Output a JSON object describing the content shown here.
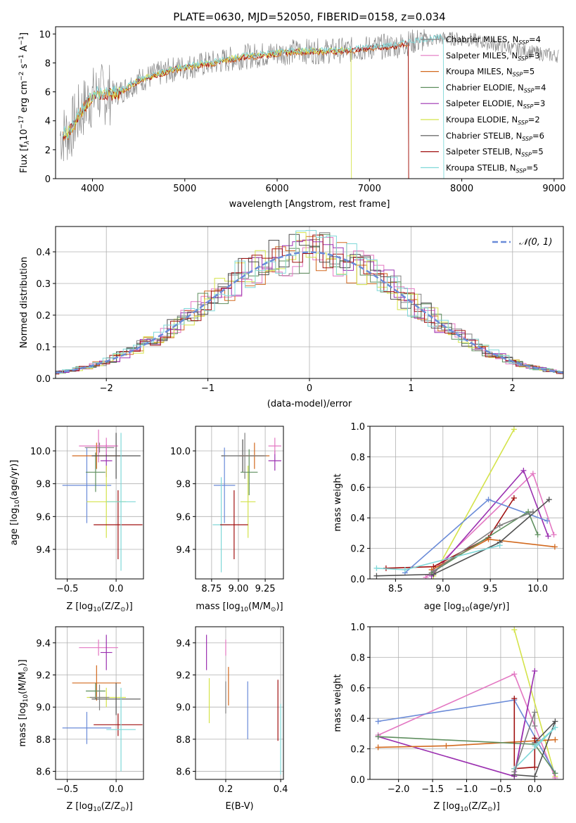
{
  "colors": {
    "Chabrier MILES": "#808080",
    "Salpeter MILES": "#e377c2",
    "Kroupa MILES": "#d2691e",
    "Chabrier ELODIE": "#5f8f5f",
    "Salpeter ELODIE": "#9b30b0",
    "Kroupa ELODIE": "#d4e34a",
    "Chabrier STELIB": "#505050",
    "Salpeter STELIB": "#a01010",
    "Kroupa STELIB": "#7fd8d8",
    "blue": "#6a8bd8",
    "grid": "#b0b0b0"
  },
  "chart_data": [
    {
      "id": "spectrum",
      "type": "line",
      "title": "PLATE=0630, MJD=52050, FIBERID=0158, z=0.034",
      "xlabel": "wavelength [Angstrom, rest frame]",
      "ylabel_parts": [
        "Flux [f",
        "λ",
        "10",
        "−17",
        " erg cm",
        "−2",
        " s",
        "−1",
        " A",
        "−1",
        "]"
      ],
      "xlim": [
        3600,
        9100
      ],
      "ylim": [
        0,
        10.5
      ],
      "xticks": [
        "4000",
        "5000",
        "6000",
        "7000",
        "8000",
        "9000"
      ],
      "yticks": [
        "0",
        "2",
        "4",
        "6",
        "8",
        "10"
      ],
      "grid": false,
      "legend_position": "right",
      "legend": [
        {
          "main": "Chabrier MILES, N",
          "sub": "SSP",
          "tail": "=4",
          "color": "Chabrier MILES"
        },
        {
          "main": "Salpeter MILES, N",
          "sub": "SSP",
          "tail": "=3",
          "color": "Salpeter MILES"
        },
        {
          "main": "Kroupa MILES, N",
          "sub": "SSP",
          "tail": "=5",
          "color": "Kroupa MILES"
        },
        {
          "main": "Chabrier ELODIE, N",
          "sub": "SSP",
          "tail": "=4",
          "color": "Chabrier ELODIE"
        },
        {
          "main": "Salpeter ELODIE, N",
          "sub": "SSP",
          "tail": "=3",
          "color": "Salpeter ELODIE"
        },
        {
          "main": "Kroupa ELODIE, N",
          "sub": "SSP",
          "tail": "=2",
          "color": "Kroupa ELODIE"
        },
        {
          "main": "Chabrier STELIB, N",
          "sub": "SSP",
          "tail": "=6",
          "color": "Chabrier STELIB"
        },
        {
          "main": "Salpeter STELIB, N",
          "sub": "SSP",
          "tail": "=5",
          "color": "Salpeter STELIB"
        },
        {
          "main": "Kroupa STELIB, N",
          "sub": "SSP",
          "tail": "=5",
          "color": "Kroupa STELIB"
        }
      ],
      "continuum": {
        "x": [
          3650,
          3750,
          3850,
          3950,
          4050,
          4150,
          4300,
          4500,
          4700,
          4900,
          5100,
          5300,
          5600,
          5900,
          6200,
          6500,
          6800,
          7100,
          7300,
          7500,
          7800,
          8100,
          8400,
          8700,
          9000
        ],
        "y": [
          3.0,
          3.2,
          4.4,
          5.3,
          5.9,
          5.8,
          6.0,
          6.8,
          7.2,
          7.6,
          7.8,
          8.0,
          8.4,
          8.6,
          8.8,
          8.8,
          8.9,
          9.1,
          9.2,
          9.5,
          9.7,
          9.6,
          9.2,
          8.8,
          8.5
        ]
      }
    },
    {
      "id": "residuals",
      "type": "step",
      "xlabel": "(data-model)/error",
      "ylabel": "Normed distribution",
      "xlim": [
        -2.5,
        2.5
      ],
      "ylim": [
        0,
        0.48
      ],
      "xticks": [
        "−2",
        "−1",
        "0",
        "1",
        "2"
      ],
      "yticks": [
        "0.0",
        "0.1",
        "0.2",
        "0.3",
        "0.4"
      ],
      "grid": true,
      "legend_label": "𝒩(0, 1)",
      "legend_position": "top-right",
      "gaussian": {
        "mu": 0,
        "sigma": 1
      }
    },
    {
      "id": "z-age",
      "type": "errorbar",
      "xlabel": "Z [log10(Z/Z⊙)]",
      "ylabel": "age  [log10(age/yr)]",
      "xlim": [
        -0.62,
        0.28
      ],
      "ylim": [
        9.22,
        10.15
      ],
      "xticks": [
        "−0.5",
        "0.0"
      ],
      "yticks": [
        "9.4",
        "9.6",
        "9.8",
        "10.0"
      ],
      "points": [
        {
          "x": -0.3,
          "y": 9.79,
          "xerr": 0.25,
          "yerr": 0.23,
          "color": "blue"
        },
        {
          "x": -0.18,
          "y": 10.03,
          "xerr": 0.2,
          "yerr": 0.1,
          "color": "Salpeter MILES"
        },
        {
          "x": -0.17,
          "y": 10.02,
          "xerr": 0.15,
          "yerr": 0.03,
          "color": "Chabrier MILES"
        },
        {
          "x": -0.2,
          "y": 9.97,
          "xerr": 0.25,
          "yerr": 0.08,
          "color": "Kroupa MILES"
        },
        {
          "x": -0.21,
          "y": 9.87,
          "xerr": 0.1,
          "yerr": 0.12,
          "color": "Chabrier ELODIE"
        },
        {
          "x": -0.1,
          "y": 9.94,
          "xerr": 0.06,
          "yerr": 0.1,
          "color": "Salpeter ELODIE"
        },
        {
          "x": -0.1,
          "y": 9.69,
          "xerr": 0.2,
          "yerr": 0.22,
          "color": "Kroupa ELODIE"
        },
        {
          "x": 0.0,
          "y": 9.97,
          "xerr": 0.25,
          "yerr": 0.14,
          "color": "Chabrier STELIB"
        },
        {
          "x": 0.02,
          "y": 9.55,
          "xerr": 0.25,
          "yerr": 0.21,
          "color": "Salpeter STELIB"
        },
        {
          "x": 0.05,
          "y": 9.69,
          "xerr": 0.15,
          "yerr": 0.42,
          "color": "Kroupa STELIB"
        },
        {
          "x": -0.1,
          "y": 10.03,
          "xerr": 0.1,
          "yerr": 0.05,
          "color": "Salpeter MILES"
        }
      ]
    },
    {
      "id": "mass-age",
      "type": "errorbar",
      "xlabel": "mass [log10(M/M⊙)]",
      "ylabel": "",
      "xlim": [
        8.6,
        9.42
      ],
      "ylim": [
        9.22,
        10.15
      ],
      "xticks": [
        "8.75",
        "9.00",
        "9.25"
      ],
      "yticks": [
        "9.4",
        "9.6",
        "9.8",
        "10.0"
      ],
      "points": [
        {
          "x": 8.87,
          "y": 9.79,
          "xerr": 0.1,
          "yerr": 0.23,
          "color": "blue"
        },
        {
          "x": 8.84,
          "y": 9.55,
          "xerr": 0.08,
          "yerr": 0.29,
          "color": "Kroupa STELIB"
        },
        {
          "x": 9.04,
          "y": 9.97,
          "xerr": 0.2,
          "yerr": 0.1,
          "color": "Chabrier STELIB"
        },
        {
          "x": 9.09,
          "y": 9.69,
          "xerr": 0.07,
          "yerr": 0.22,
          "color": "Kroupa ELODIE"
        },
        {
          "x": 9.1,
          "y": 9.87,
          "xerr": 0.08,
          "yerr": 0.14,
          "color": "Chabrier ELODIE"
        },
        {
          "x": 9.15,
          "y": 9.97,
          "xerr": 0.14,
          "yerr": 0.08,
          "color": "Kroupa MILES"
        },
        {
          "x": 9.34,
          "y": 9.94,
          "xerr": 0.06,
          "yerr": 0.06,
          "color": "Salpeter ELODIE"
        },
        {
          "x": 9.34,
          "y": 10.03,
          "xerr": 0.06,
          "yerr": 0.05,
          "color": "Salpeter MILES"
        },
        {
          "x": 9.06,
          "y": 9.97,
          "xerr": 0.2,
          "yerr": 0.14,
          "color": "Chabrier MILES"
        },
        {
          "x": 8.96,
          "y": 9.55,
          "xerr": 0.13,
          "yerr": 0.21,
          "color": "Salpeter STELIB"
        }
      ]
    },
    {
      "id": "age-weight",
      "type": "line",
      "xlabel": "age  [log10(age/yr)]",
      "ylabel": "mass weight",
      "xlim": [
        8.23,
        10.27
      ],
      "ylim": [
        0,
        1.0
      ],
      "xticks": [
        "8.5",
        "9.0",
        "9.5",
        "10.0"
      ],
      "yticks": [
        "0.0",
        "0.2",
        "0.4",
        "0.6",
        "0.8",
        "1.0"
      ],
      "grid": true,
      "series": [
        {
          "color": "Kroupa ELODIE",
          "x": [
            8.9,
            9.75
          ],
          "y": [
            0.02,
            0.98
          ]
        },
        {
          "color": "Salpeter MILES",
          "x": [
            8.82,
            9.95,
            10.17
          ],
          "y": [
            0.01,
            0.69,
            0.29
          ]
        },
        {
          "color": "Salpeter ELODIE",
          "x": [
            8.88,
            9.85,
            10.11
          ],
          "y": [
            0.02,
            0.71,
            0.28
          ]
        },
        {
          "color": "Salpeter STELIB",
          "x": [
            8.4,
            8.9,
            9.48,
            9.75
          ],
          "y": [
            0.07,
            0.08,
            0.27,
            0.53
          ]
        },
        {
          "color": "blue",
          "x": [
            8.6,
            9.48,
            10.1
          ],
          "y": [
            0.04,
            0.52,
            0.38
          ]
        },
        {
          "color": "Kroupa MILES",
          "x": [
            8.88,
            9.48,
            10.18
          ],
          "y": [
            0.06,
            0.26,
            0.21
          ]
        },
        {
          "color": "Chabrier ELODIE",
          "x": [
            8.88,
            9.9,
            10.0
          ],
          "y": [
            0.04,
            0.44,
            0.29
          ]
        },
        {
          "color": "Chabrier STELIB",
          "x": [
            8.3,
            8.9,
            9.6,
            10.12
          ],
          "y": [
            0.02,
            0.03,
            0.24,
            0.52
          ]
        },
        {
          "color": "Kroupa STELIB",
          "x": [
            8.3,
            8.6,
            9.6
          ],
          "y": [
            0.07,
            0.06,
            0.22
          ]
        },
        {
          "color": "Chabrier MILES",
          "x": [
            8.9,
            9.6,
            9.95
          ],
          "y": [
            0.05,
            0.35,
            0.44
          ]
        }
      ]
    },
    {
      "id": "z-mass",
      "type": "errorbar",
      "xlabel": "Z [log10(Z/Z⊙)]",
      "ylabel": "mass [log10(M/M⊙)]",
      "xlim": [
        -0.62,
        0.28
      ],
      "ylim": [
        8.55,
        9.5
      ],
      "xticks": [
        "−0.5",
        "0.0"
      ],
      "yticks": [
        "8.6",
        "8.8",
        "9.0",
        "9.2",
        "9.4"
      ],
      "points": [
        {
          "x": -0.3,
          "y": 8.87,
          "xerr": 0.25,
          "yerr": 0.1,
          "color": "blue"
        },
        {
          "x": -0.18,
          "y": 9.37,
          "xerr": 0.2,
          "yerr": 0.05,
          "color": "Salpeter MILES"
        },
        {
          "x": -0.2,
          "y": 9.15,
          "xerr": 0.25,
          "yerr": 0.11,
          "color": "Kroupa MILES"
        },
        {
          "x": -0.21,
          "y": 9.1,
          "xerr": 0.1,
          "yerr": 0.05,
          "color": "Chabrier ELODIE"
        },
        {
          "x": -0.1,
          "y": 9.34,
          "xerr": 0.06,
          "yerr": 0.11,
          "color": "Salpeter ELODIE"
        },
        {
          "x": -0.1,
          "y": 9.06,
          "xerr": 0.2,
          "yerr": 0.06,
          "color": "Kroupa ELODIE"
        },
        {
          "x": 0.0,
          "y": 9.05,
          "xerr": 0.25,
          "yerr": 0.1,
          "color": "Chabrier STELIB"
        },
        {
          "x": 0.02,
          "y": 8.89,
          "xerr": 0.25,
          "yerr": 0.07,
          "color": "Salpeter STELIB"
        },
        {
          "x": 0.05,
          "y": 8.86,
          "xerr": 0.15,
          "yerr": 0.26,
          "color": "Kroupa STELIB"
        },
        {
          "x": -0.17,
          "y": 9.06,
          "xerr": 0.1,
          "yerr": 0.08,
          "color": "Chabrier MILES"
        }
      ]
    },
    {
      "id": "ebv-mass",
      "type": "errorbar",
      "xlabel": "E(B-V)",
      "ylabel": "",
      "xlim": [
        0.09,
        0.41
      ],
      "ylim": [
        8.55,
        9.5
      ],
      "xticks": [
        "0.2",
        "0.4"
      ],
      "yticks": [
        "8.6",
        "8.8",
        "9.0",
        "9.2",
        "9.4"
      ],
      "points": [
        {
          "x": 0.13,
          "y": 9.34,
          "xerr": 0,
          "yerr": 0.11,
          "color": "Salpeter ELODIE"
        },
        {
          "x": 0.14,
          "y": 9.04,
          "xerr": 0,
          "yerr": 0.14,
          "color": "Kroupa ELODIE"
        },
        {
          "x": 0.2,
          "y": 9.06,
          "xerr": 0,
          "yerr": 0.1,
          "color": "Chabrier MILES"
        },
        {
          "x": 0.2,
          "y": 9.37,
          "xerr": 0,
          "yerr": 0.05,
          "color": "Salpeter MILES"
        },
        {
          "x": 0.21,
          "y": 9.13,
          "xerr": 0,
          "yerr": 0.12,
          "color": "Kroupa MILES"
        },
        {
          "x": 0.28,
          "y": 8.98,
          "xerr": 0,
          "yerr": 0.18,
          "color": "blue"
        },
        {
          "x": 0.39,
          "y": 8.98,
          "xerr": 0,
          "yerr": 0.19,
          "color": "Salpeter STELIB"
        },
        {
          "x": 0.4,
          "y": 8.8,
          "xerr": 0,
          "yerr": 0.22,
          "color": "Kroupa STELIB"
        }
      ]
    },
    {
      "id": "z-weight",
      "type": "line",
      "xlabel": "Z [log10(Z/Z⊙)]",
      "ylabel": "mass weight",
      "xlim": [
        -2.42,
        0.42
      ],
      "ylim": [
        0,
        1.0
      ],
      "xticks": [
        "−2.0",
        "−1.5",
        "−1.0",
        "−0.5",
        "0.0"
      ],
      "yticks": [
        "0.0",
        "0.2",
        "0.4",
        "0.6",
        "0.8",
        "1.0"
      ],
      "grid": true,
      "series": [
        {
          "color": "Kroupa ELODIE",
          "x": [
            -0.3,
            0.3
          ],
          "y": [
            0.98,
            0.02
          ]
        },
        {
          "color": "Salpeter MILES",
          "x": [
            -2.3,
            -0.3,
            0.3
          ],
          "y": [
            0.29,
            0.69,
            0.01
          ]
        },
        {
          "color": "Salpeter ELODIE",
          "x": [
            -2.3,
            -0.3,
            0.0,
            -0.3
          ],
          "y": [
            0.28,
            0.02,
            0.71,
            0.03
          ]
        },
        {
          "color": "blue",
          "x": [
            -2.3,
            -0.3,
            0.3
          ],
          "y": [
            0.38,
            0.52,
            0.04
          ]
        },
        {
          "color": "Kroupa MILES",
          "x": [
            -2.3,
            -1.3,
            0.3
          ],
          "y": [
            0.21,
            0.22,
            0.26
          ]
        },
        {
          "color": "Chabrier ELODIE",
          "x": [
            -2.3,
            0.0,
            0.3
          ],
          "y": [
            0.28,
            0.23,
            0.04
          ]
        },
        {
          "color": "Chabrier STELIB",
          "x": [
            -0.3,
            0.0,
            0.3,
            0.0
          ],
          "y": [
            0.03,
            0.02,
            0.38,
            0.24
          ]
        },
        {
          "color": "Salpeter STELIB",
          "x": [
            -0.3,
            -0.3,
            0.0,
            0.0
          ],
          "y": [
            0.53,
            0.07,
            0.08,
            0.27
          ]
        },
        {
          "color": "Kroupa STELIB",
          "x": [
            -0.3,
            0.3,
            0.0
          ],
          "y": [
            0.07,
            0.34,
            0.22
          ]
        },
        {
          "color": "Chabrier MILES",
          "x": [
            -0.3,
            0.0,
            0.0
          ],
          "y": [
            0.05,
            0.44,
            0.35
          ]
        }
      ]
    }
  ]
}
